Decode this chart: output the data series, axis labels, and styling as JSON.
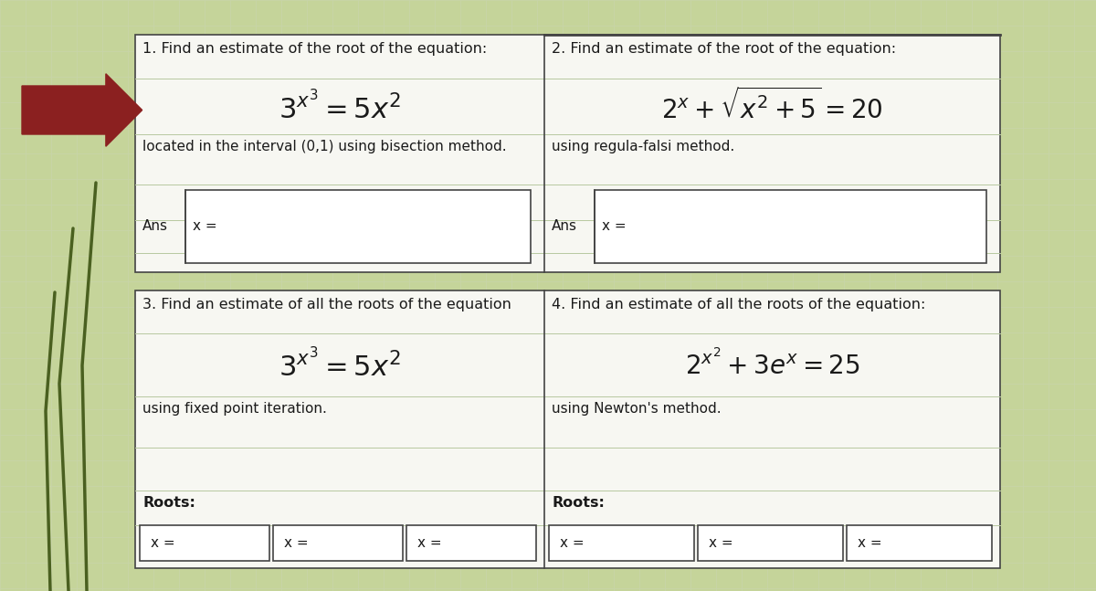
{
  "bg_color": "#c5d49a",
  "paper_color": "#f7f7f2",
  "grid_color": "#c8d4aa",
  "border_color": "#444444",
  "arrow_color": "#8b2020",
  "text_color": "#1a1a1a",
  "box_bg": "#ffffff",
  "grass_color": "#4a6020",
  "q1_title": "1. Find an estimate of the root of the equation:",
  "q1_eq": "$3^{x^3} = 5x^2$",
  "q1_method": "located in the interval (0,1) using bisection method.",
  "q1_ans_label": "Ans",
  "q1_ans_x": "x =",
  "q2_title": "2. Find an estimate of the root of the equation:",
  "q2_eq": "$2^x +\\sqrt{x^2+5}=20$",
  "q2_method": "using regula-falsi method.",
  "q2_ans_label": "Ans",
  "q2_ans_x": "x =",
  "q3_title": "3. Find an estimate of all the roots of the equation",
  "q3_eq": "$3^{x^3} = 5x^2$",
  "q3_method": "using fixed point iteration.",
  "q3_roots_label": "Roots:",
  "q3_x_labels": [
    "x =",
    "x =",
    "x ="
  ],
  "q4_title": "4. Find an estimate of all the roots of the equation:",
  "q4_eq": "$2^{x^2} + 3e^x = 25$",
  "q4_method": "using Newton's method.",
  "q4_roots_label": "Roots:",
  "q4_x_labels": [
    "x =",
    "x =",
    "x ="
  ]
}
